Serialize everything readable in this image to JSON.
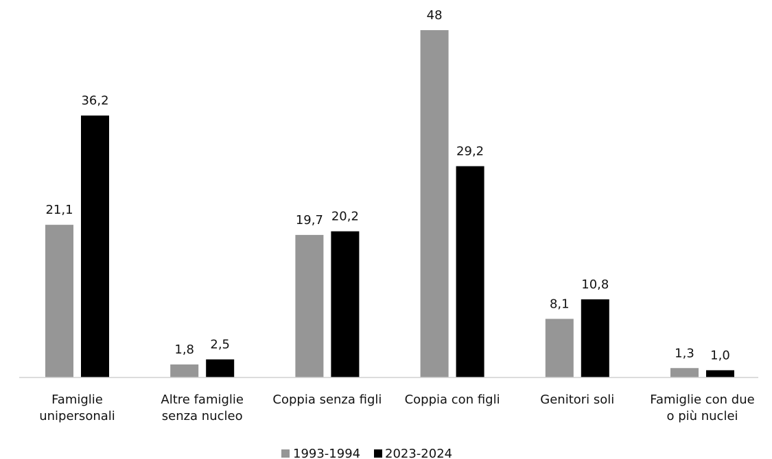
{
  "chart_data": {
    "type": "bar",
    "categories": [
      [
        "Famiglie",
        "unipersonali"
      ],
      [
        "Altre famiglie",
        "senza nucleo"
      ],
      [
        "Coppia senza figli"
      ],
      [
        "Coppia con figli"
      ],
      [
        "Genitori soli"
      ],
      [
        "Famiglie con due",
        "o più nuclei"
      ]
    ],
    "series": [
      {
        "name": "1993-1994",
        "color": "#969696",
        "values": [
          21.1,
          1.8,
          19.7,
          48,
          8.1,
          1.3
        ],
        "labels": [
          "21,1",
          "1,8",
          "19,7",
          "48",
          "8,1",
          "1,3"
        ]
      },
      {
        "name": "2023-2024",
        "color": "#000000",
        "values": [
          36.2,
          2.5,
          20.2,
          29.2,
          10.8,
          1.0
        ],
        "labels": [
          "36,2",
          "2,5",
          "20,2",
          "29,2",
          "10,8",
          "1,0"
        ]
      }
    ],
    "ylim": [
      0,
      48
    ],
    "grid": false,
    "legend_position": "bottom"
  }
}
